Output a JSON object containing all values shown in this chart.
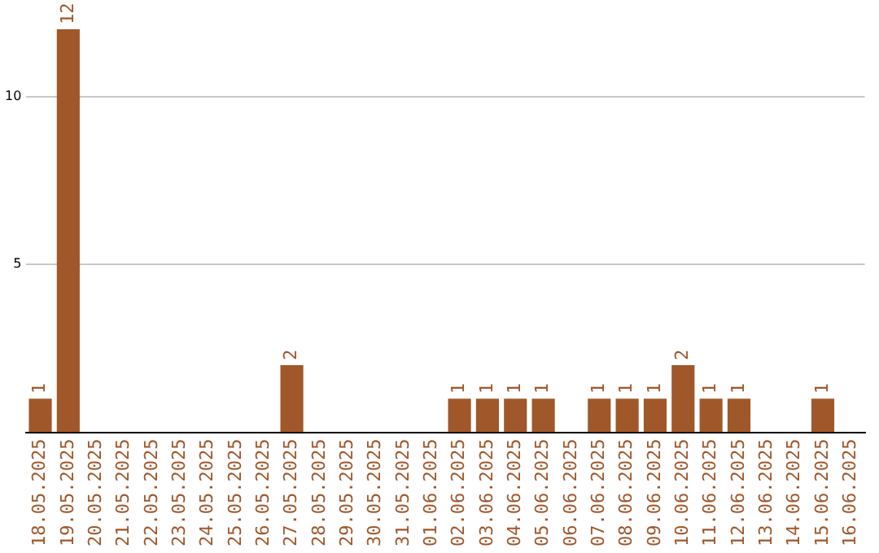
{
  "chart_data": {
    "type": "bar",
    "categories": [
      "18.05.2025",
      "19.05.2025",
      "20.05.2025",
      "21.05.2025",
      "22.05.2025",
      "23.05.2025",
      "24.05.2025",
      "25.05.2025",
      "26.05.2025",
      "27.05.2025",
      "28.05.2025",
      "29.05.2025",
      "30.05.2025",
      "31.05.2025",
      "01.06.2025",
      "02.06.2025",
      "03.06.2025",
      "04.06.2025",
      "05.06.2025",
      "06.06.2025",
      "07.06.2025",
      "08.06.2025",
      "09.06.2025",
      "10.06.2025",
      "11.06.2025",
      "12.06.2025",
      "13.06.2025",
      "14.06.2025",
      "15.06.2025",
      "16.06.2025"
    ],
    "values": [
      1,
      12,
      0,
      0,
      0,
      0,
      0,
      0,
      0,
      2,
      0,
      0,
      0,
      0,
      0,
      1,
      1,
      1,
      1,
      0,
      1,
      1,
      1,
      2,
      1,
      1,
      0,
      0,
      1,
      0
    ],
    "value_labels": [
      "1",
      "12",
      null,
      null,
      null,
      null,
      null,
      null,
      null,
      "2",
      null,
      null,
      null,
      null,
      null,
      "1",
      "1",
      "1",
      "1",
      null,
      "1",
      "1",
      "1",
      "2",
      "1",
      "1",
      null,
      null,
      "1",
      null
    ],
    "color": "#a0572a",
    "ylim": [
      0,
      12
    ],
    "yticks": [
      5,
      10
    ],
    "grid": "y",
    "legend": false
  }
}
